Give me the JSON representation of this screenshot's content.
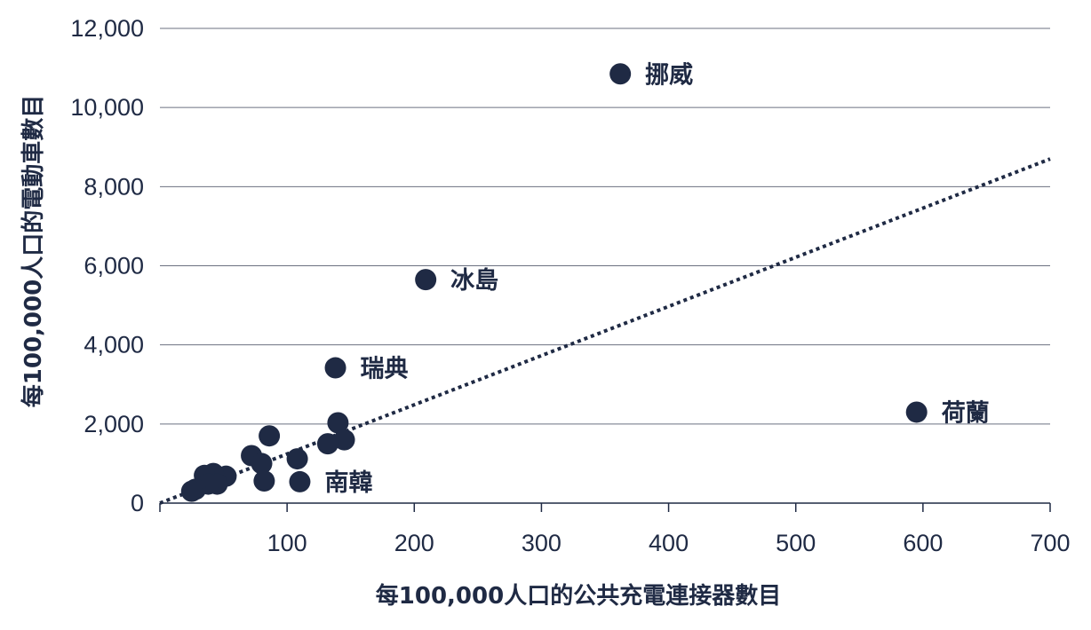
{
  "chart_data": {
    "type": "scatter",
    "xlabel": "每100,000人口的公共充電連接器數目",
    "ylabel": "每100,000人口的電動車數目",
    "xlim": [
      0,
      700
    ],
    "ylim": [
      0,
      12000
    ],
    "x_ticks": [
      100,
      200,
      300,
      400,
      500,
      600,
      700
    ],
    "y_ticks": [
      0,
      2000,
      4000,
      6000,
      8000,
      10000,
      12000
    ],
    "x_tick_labels": [
      "100",
      "200",
      "300",
      "400",
      "500",
      "600",
      "700"
    ],
    "y_tick_labels": [
      "0",
      "2,000",
      "4,000",
      "6,000",
      "8,000",
      "10,000",
      "12,000"
    ],
    "grid": "horizontal",
    "colors": {
      "points": "#1f2a44",
      "trend": "#1f2a44",
      "grid": "#6b7080"
    },
    "trendline": {
      "style": "dotted",
      "x": [
        0,
        700
      ],
      "y": [
        0,
        8700
      ]
    },
    "points": [
      {
        "x": 362,
        "y": 10850,
        "label": "挪威"
      },
      {
        "x": 209,
        "y": 5650,
        "label": "冰島"
      },
      {
        "x": 138,
        "y": 3420,
        "label": "瑞典"
      },
      {
        "x": 595,
        "y": 2300,
        "label": "荷蘭"
      },
      {
        "x": 110,
        "y": 540,
        "label": "南韓"
      },
      {
        "x": 140,
        "y": 2030,
        "label": ""
      },
      {
        "x": 145,
        "y": 1600,
        "label": ""
      },
      {
        "x": 132,
        "y": 1500,
        "label": ""
      },
      {
        "x": 86,
        "y": 1700,
        "label": ""
      },
      {
        "x": 108,
        "y": 1120,
        "label": ""
      },
      {
        "x": 72,
        "y": 1200,
        "label": ""
      },
      {
        "x": 80,
        "y": 1000,
        "label": ""
      },
      {
        "x": 82,
        "y": 560,
        "label": ""
      },
      {
        "x": 52,
        "y": 680,
        "label": ""
      },
      {
        "x": 42,
        "y": 750,
        "label": ""
      },
      {
        "x": 35,
        "y": 700,
        "label": ""
      },
      {
        "x": 45,
        "y": 480,
        "label": ""
      },
      {
        "x": 38,
        "y": 480,
        "label": ""
      },
      {
        "x": 28,
        "y": 350,
        "label": ""
      },
      {
        "x": 25,
        "y": 300,
        "label": ""
      }
    ]
  }
}
